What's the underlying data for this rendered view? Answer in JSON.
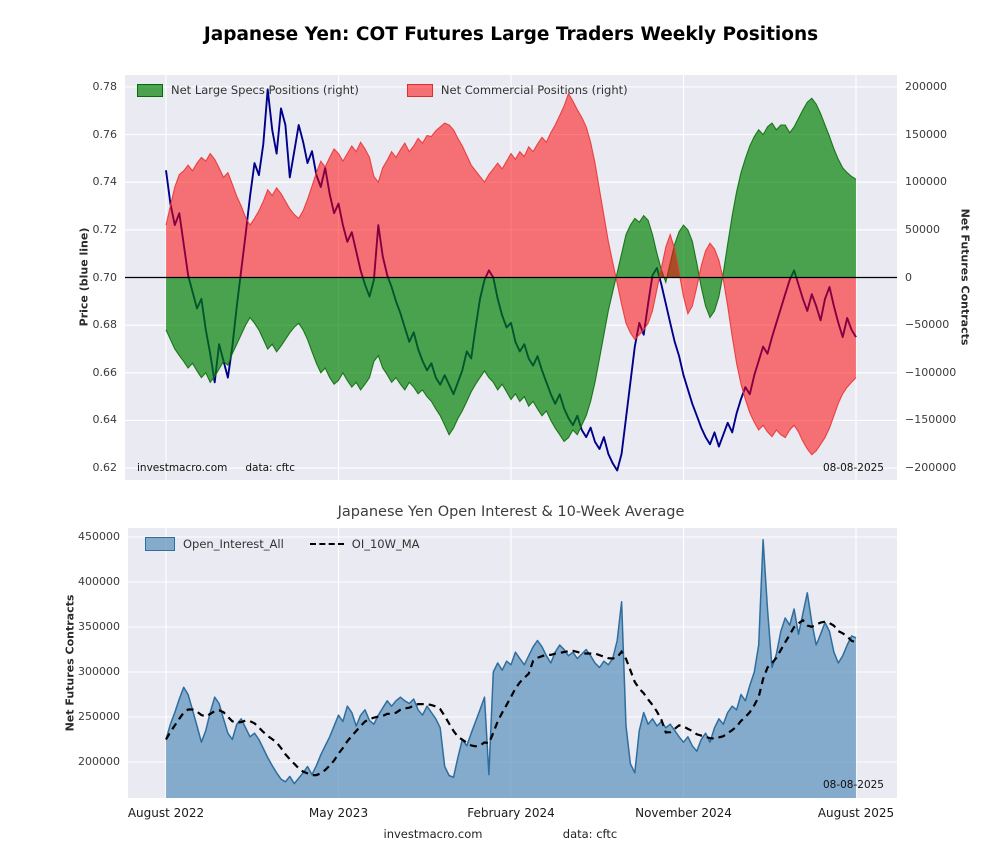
{
  "page": {
    "watermark_site": "investmacro.com",
    "watermark_source": "data: cftc",
    "footer_site": "investmacro.com",
    "footer_source": "data: cftc"
  },
  "chart_data": [
    {
      "type": "area",
      "title": "Japanese Yen: COT Futures Large Traders Weekly Positions",
      "ylabel_left": "Price (blue line)",
      "ylabel_right": "Net Futures Contracts",
      "annotation_date": "08-08-2025",
      "bg_color": "#eaeaf2",
      "grid": true,
      "x_axis": {
        "type": "weekly",
        "start_label": "August 2022",
        "end_label": "August 2025",
        "points": 157
      },
      "x_ticks": [
        "August 2022",
        "May 2023",
        "February 2024",
        "November 2024",
        "August 2025"
      ],
      "x_tick_idx": [
        0,
        39,
        78,
        117,
        156
      ],
      "y_left_range": [
        0.615,
        0.785
      ],
      "y_left_tick_values": [
        0.62,
        0.64,
        0.66,
        0.68,
        0.7,
        0.72,
        0.74,
        0.76,
        0.78
      ],
      "y_left_tick_labels": [
        "0.62",
        "0.64",
        "0.66",
        "0.68",
        "0.70",
        "0.72",
        "0.74",
        "0.76",
        "0.78"
      ],
      "y_right_range": [
        -212500,
        212500
      ],
      "y_right_tick_values": [
        -200000,
        -150000,
        -100000,
        -50000,
        0,
        50000,
        100000,
        150000,
        200000
      ],
      "y_right_tick_labels": [
        "−200000",
        "−150000",
        "−100000",
        "−50000",
        "0",
        "50000",
        "100000",
        "150000",
        "200000"
      ],
      "legend": [
        {
          "label": "Net Large Specs Positions (right)",
          "color": "#008000"
        },
        {
          "label": "Net Commercial Positions (right)",
          "color": "#ff0000"
        }
      ],
      "series": [
        {
          "name": "Price",
          "axis": "left",
          "color": "#00008b",
          "values": [
            0.745,
            0.731,
            0.722,
            0.727,
            0.714,
            0.701,
            0.694,
            0.687,
            0.691,
            0.678,
            0.668,
            0.656,
            0.672,
            0.665,
            0.658,
            0.671,
            0.688,
            0.703,
            0.718,
            0.734,
            0.748,
            0.743,
            0.756,
            0.779,
            0.762,
            0.752,
            0.771,
            0.764,
            0.742,
            0.753,
            0.764,
            0.757,
            0.748,
            0.753,
            0.743,
            0.738,
            0.746,
            0.735,
            0.727,
            0.731,
            0.722,
            0.715,
            0.719,
            0.711,
            0.703,
            0.697,
            0.692,
            0.699,
            0.722,
            0.709,
            0.701,
            0.696,
            0.69,
            0.685,
            0.679,
            0.673,
            0.677,
            0.67,
            0.665,
            0.661,
            0.664,
            0.658,
            0.655,
            0.659,
            0.655,
            0.651,
            0.656,
            0.661,
            0.669,
            0.666,
            0.679,
            0.691,
            0.699,
            0.703,
            0.7,
            0.691,
            0.684,
            0.679,
            0.681,
            0.673,
            0.669,
            0.672,
            0.666,
            0.663,
            0.667,
            0.661,
            0.656,
            0.651,
            0.647,
            0.651,
            0.645,
            0.641,
            0.638,
            0.642,
            0.636,
            0.633,
            0.637,
            0.631,
            0.628,
            0.633,
            0.626,
            0.622,
            0.619,
            0.626,
            0.641,
            0.656,
            0.671,
            0.681,
            0.676,
            0.689,
            0.701,
            0.704,
            0.697,
            0.689,
            0.681,
            0.673,
            0.667,
            0.659,
            0.653,
            0.647,
            0.642,
            0.637,
            0.633,
            0.63,
            0.635,
            0.629,
            0.634,
            0.639,
            0.635,
            0.643,
            0.649,
            0.654,
            0.651,
            0.659,
            0.665,
            0.671,
            0.668,
            0.675,
            0.681,
            0.687,
            0.693,
            0.699,
            0.703,
            0.697,
            0.691,
            0.686,
            0.693,
            0.688,
            0.682,
            0.691,
            0.696,
            0.688,
            0.681,
            0.675,
            0.683,
            0.678,
            0.675
          ]
        },
        {
          "name": "Net Large Specs Positions (right)",
          "axis": "right",
          "color": "#008000",
          "edge_color": "#0d6e0d",
          "fill_opacity": 0.68,
          "fill": true,
          "values": [
            -55000,
            -65000,
            -75000,
            -82000,
            -88000,
            -95000,
            -90000,
            -98000,
            -105000,
            -100000,
            -110000,
            -104000,
            -96000,
            -88000,
            -92000,
            -80000,
            -70000,
            -60000,
            -50000,
            -42000,
            -48000,
            -55000,
            -65000,
            -75000,
            -70000,
            -78000,
            -72000,
            -65000,
            -58000,
            -52000,
            -48000,
            -55000,
            -65000,
            -78000,
            -90000,
            -100000,
            -95000,
            -105000,
            -112000,
            -108000,
            -100000,
            -108000,
            -115000,
            -110000,
            -118000,
            -112000,
            -105000,
            -88000,
            -82000,
            -95000,
            -102000,
            -110000,
            -105000,
            -112000,
            -118000,
            -110000,
            -115000,
            -122000,
            -118000,
            -125000,
            -130000,
            -138000,
            -145000,
            -155000,
            -165000,
            -158000,
            -148000,
            -140000,
            -130000,
            -120000,
            -112000,
            -105000,
            -98000,
            -105000,
            -110000,
            -118000,
            -112000,
            -120000,
            -128000,
            -122000,
            -130000,
            -125000,
            -135000,
            -130000,
            -138000,
            -145000,
            -140000,
            -150000,
            -158000,
            -165000,
            -172000,
            -168000,
            -160000,
            -165000,
            -155000,
            -145000,
            -130000,
            -110000,
            -85000,
            -60000,
            -35000,
            -15000,
            5000,
            25000,
            45000,
            55000,
            62000,
            58000,
            65000,
            60000,
            45000,
            25000,
            8000,
            -5000,
            15000,
            35000,
            48000,
            55000,
            50000,
            38000,
            15000,
            -10000,
            -30000,
            -42000,
            -35000,
            -20000,
            5000,
            35000,
            65000,
            90000,
            110000,
            125000,
            138000,
            148000,
            155000,
            150000,
            158000,
            162000,
            155000,
            160000,
            160000,
            152000,
            158000,
            167000,
            176000,
            184000,
            188000,
            182000,
            172000,
            160000,
            148000,
            135000,
            124000,
            115000,
            110000,
            106000,
            103000
          ]
        },
        {
          "name": "Net Commercial Positions (right)",
          "axis": "right",
          "color": "#ff0000",
          "edge_color": "#e93535",
          "fill_opacity": 0.52,
          "fill": true,
          "values": [
            55000,
            75000,
            95000,
            108000,
            112000,
            118000,
            112000,
            120000,
            126000,
            122000,
            130000,
            124000,
            115000,
            105000,
            110000,
            98000,
            85000,
            75000,
            63000,
            55000,
            62000,
            70000,
            80000,
            92000,
            86000,
            94000,
            88000,
            80000,
            72000,
            66000,
            62000,
            70000,
            82000,
            96000,
            110000,
            122000,
            116000,
            126000,
            135000,
            130000,
            122000,
            130000,
            138000,
            132000,
            142000,
            135000,
            126000,
            106000,
            100000,
            115000,
            123000,
            132000,
            126000,
            134000,
            141000,
            132000,
            138000,
            146000,
            141000,
            149000,
            148000,
            154000,
            158000,
            162000,
            160000,
            155000,
            146000,
            138000,
            128000,
            118000,
            112000,
            106000,
            100000,
            108000,
            114000,
            120000,
            114000,
            122000,
            130000,
            124000,
            132000,
            127000,
            137000,
            132000,
            140000,
            147000,
            142000,
            152000,
            160000,
            170000,
            180000,
            193000,
            185000,
            176000,
            168000,
            158000,
            142000,
            120000,
            92000,
            65000,
            38000,
            16000,
            -6000,
            -28000,
            -48000,
            -58000,
            -65000,
            -60000,
            -55000,
            -48000,
            -35000,
            -12000,
            10000,
            32000,
            45000,
            30000,
            5000,
            -20000,
            -38000,
            -30000,
            -10000,
            12000,
            28000,
            36000,
            30000,
            18000,
            -2000,
            -30000,
            -62000,
            -90000,
            -112000,
            -128000,
            -142000,
            -152000,
            -160000,
            -155000,
            -162000,
            -167000,
            -160000,
            -165000,
            -168000,
            -160000,
            -155000,
            -162000,
            -172000,
            -180000,
            -186000,
            -182000,
            -175000,
            -168000,
            -158000,
            -145000,
            -132000,
            -122000,
            -115000,
            -110000,
            -105000
          ]
        }
      ]
    },
    {
      "type": "area",
      "title": "Japanese Yen Open Interest & 10-Week Average",
      "ylabel": "Net Futures Contracts",
      "annotation_date": "08-08-2025",
      "bg_color": "#eaeaf2",
      "grid": true,
      "x_ticks": [
        "August 2022",
        "May 2023",
        "February 2024",
        "November 2024",
        "August 2025"
      ],
      "x_tick_idx": [
        0,
        39,
        78,
        117,
        156
      ],
      "y_range": [
        160000,
        460000
      ],
      "y_tick_values": [
        200000,
        250000,
        300000,
        350000,
        400000,
        450000
      ],
      "y_tick_labels": [
        "200000",
        "250000",
        "300000",
        "350000",
        "400000",
        "450000"
      ],
      "legend": [
        {
          "label": "Open_Interest_All",
          "color": "#4682b4"
        },
        {
          "label": "OI_10W_MA",
          "color": "#000000",
          "style": "dashed"
        }
      ],
      "series": [
        {
          "name": "Open_Interest_All",
          "color": "#4682b4",
          "fill": true,
          "values": [
            225000,
            242000,
            255000,
            270000,
            283000,
            275000,
            258000,
            240000,
            222000,
            235000,
            255000,
            272000,
            265000,
            248000,
            232000,
            225000,
            242000,
            248000,
            238000,
            228000,
            232000,
            225000,
            215000,
            205000,
            196000,
            188000,
            181000,
            178000,
            184000,
            176000,
            182000,
            188000,
            195000,
            186000,
            196000,
            208000,
            218000,
            228000,
            240000,
            252000,
            245000,
            262000,
            255000,
            240000,
            252000,
            258000,
            246000,
            242000,
            252000,
            260000,
            268000,
            262000,
            268000,
            272000,
            268000,
            265000,
            270000,
            258000,
            252000,
            262000,
            255000,
            248000,
            238000,
            195000,
            185000,
            183000,
            205000,
            225000,
            218000,
            232000,
            245000,
            258000,
            272000,
            186000,
            300000,
            310000,
            302000,
            312000,
            308000,
            322000,
            315000,
            308000,
            318000,
            328000,
            335000,
            328000,
            318000,
            310000,
            322000,
            330000,
            325000,
            318000,
            322000,
            315000,
            320000,
            325000,
            318000,
            310000,
            305000,
            312000,
            308000,
            315000,
            335000,
            378000,
            240000,
            198000,
            188000,
            235000,
            255000,
            242000,
            248000,
            240000,
            245000,
            238000,
            242000,
            235000,
            228000,
            222000,
            228000,
            218000,
            212000,
            225000,
            232000,
            222000,
            238000,
            248000,
            242000,
            255000,
            262000,
            258000,
            275000,
            268000,
            285000,
            300000,
            330000,
            447000,
            370000,
            305000,
            320000,
            345000,
            360000,
            352000,
            370000,
            342000,
            365000,
            388000,
            355000,
            330000,
            342000,
            355000,
            345000,
            322000,
            310000,
            318000,
            330000,
            340000,
            338000
          ]
        },
        {
          "name": "OI_10W_MA",
          "color": "#000000",
          "style": "dashed",
          "derived_from": "Open_Interest_All",
          "window": 10
        }
      ]
    }
  ]
}
